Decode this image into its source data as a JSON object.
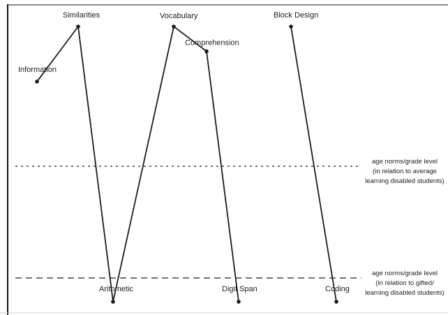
{
  "chart_data": {
    "type": "line",
    "title": "",
    "xlabel": "",
    "ylabel": "",
    "points": [
      {
        "label": "Information",
        "y": 0.8
      },
      {
        "label": "Similarities",
        "y": 1.0
      },
      {
        "label": "Arithmetic",
        "y": 0.0
      },
      {
        "label": "Vocabulary",
        "y": 1.0
      },
      {
        "label": "Comprehension",
        "y": 0.91
      },
      {
        "label": "Digit Span",
        "y": 0.0
      },
      {
        "label": "Block Design",
        "y": 1.0
      },
      {
        "label": "Coding",
        "y": 0.0
      }
    ],
    "segments": [
      [
        0,
        1
      ],
      [
        1,
        2
      ],
      [
        2,
        3
      ],
      [
        3,
        4
      ],
      [
        4,
        5
      ],
      [
        6,
        7
      ]
    ],
    "reference_lines": [
      {
        "style": "dotted",
        "lines": [
          "age norms/grade level",
          "(in relation to average",
          "learning disabled students)"
        ]
      },
      {
        "style": "dashed",
        "lines": [
          "age norms/grade level",
          "(in relation to gifted/",
          "learning disabled students)"
        ]
      }
    ],
    "grid": false,
    "legend": "none"
  },
  "colors": {
    "line": "#1c1c1c",
    "axis": "#111111",
    "background": "#ffffff"
  }
}
